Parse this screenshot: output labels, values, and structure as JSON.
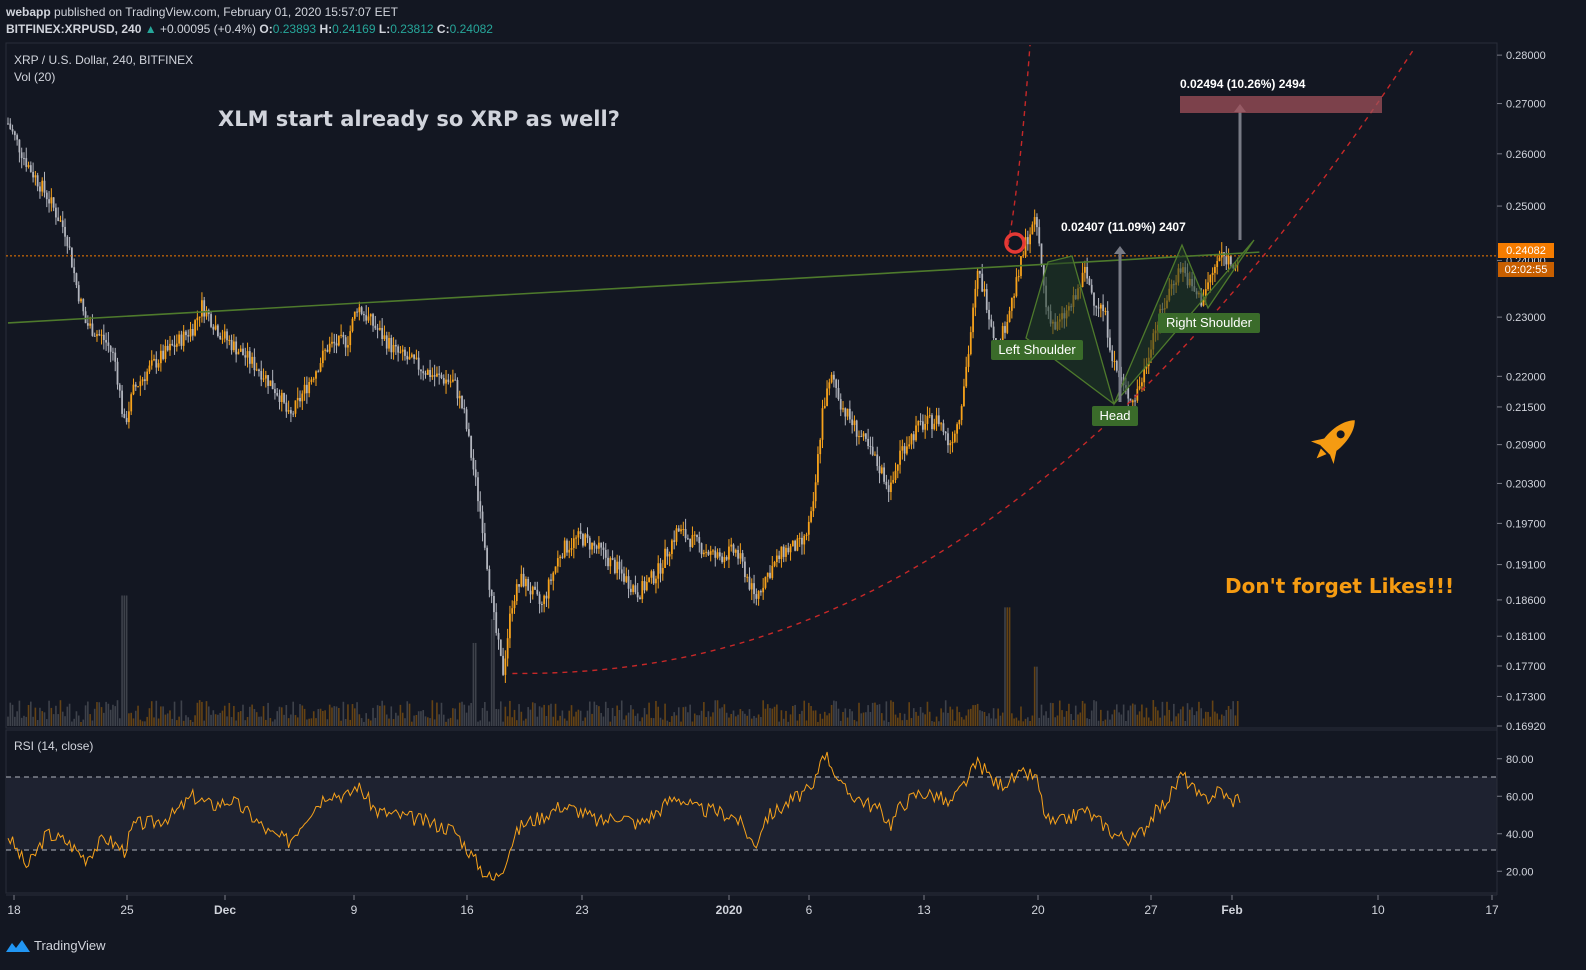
{
  "header": {
    "publisher": "webapp",
    "published_text": "published on TradingView.com, February 01, 2020 15:57:07 EET",
    "symbol": "BITFINEX:XRPUSD, 240",
    "change": "+0.00095 (+0.4%)",
    "o_label": "O:",
    "o": "0.23893",
    "h_label": "H:",
    "h": "0.24169",
    "l_label": "L:",
    "l": "0.23812",
    "c_label": "C:",
    "c": "0.24082"
  },
  "legend": {
    "title": "XRP / U.S. Dollar, 240, BITFINEX",
    "vol": "Vol (20)",
    "rsi": "RSI (14, close)"
  },
  "annotations": {
    "headline": "XLM start already so XRP as well?",
    "likes": "Don't forget Likes!!!",
    "left_shoulder": "Left Shoulder",
    "head": "Head",
    "right_shoulder": "Right Shoulder",
    "measure1": "0.02407 (11.09%) 2407",
    "measure2": "0.02494 (10.26%) 2494"
  },
  "price_tag": {
    "price": "0.24082",
    "countdown": "02:02:55"
  },
  "footer": {
    "brand": "TradingView"
  },
  "colors": {
    "background": "#131722",
    "candle_up": "#f7a21b",
    "candle_down": "#b2b5be",
    "trendline": "#4e7a2c",
    "curve": "#c62828",
    "rsi_line": "#f7a21b",
    "price_tag": "#f57c00",
    "label_green": "#3a6b2a",
    "target_box": "#a0505a"
  },
  "chart_data": {
    "type": "candlestick",
    "symbol": "XRP / U.S. Dollar",
    "timeframe": "240",
    "y_axis": {
      "scale": "log",
      "range": [
        0.1692,
        0.2815
      ],
      "tick_labels": [
        "0.28000",
        "0.27000",
        "0.26000",
        "0.25000",
        "0.24000",
        "0.23000",
        "0.22000",
        "0.21500",
        "0.20900",
        "0.20300",
        "0.19700",
        "0.19100",
        "0.18600",
        "0.18100",
        "0.17700",
        "0.17300",
        "0.16920"
      ],
      "ticks": [
        0.28,
        0.27,
        0.26,
        0.25,
        0.24,
        0.23,
        0.22,
        0.215,
        0.209,
        0.203,
        0.197,
        0.191,
        0.186,
        0.181,
        0.177,
        0.173,
        0.1692
      ]
    },
    "x_axis": {
      "tick_labels": [
        "18",
        "25",
        "Dec",
        "9",
        "16",
        "23",
        "2020",
        "6",
        "13",
        "20",
        "27",
        "Feb",
        "10",
        "17"
      ]
    },
    "price_path": [
      [
        0,
        0.266
      ],
      [
        2,
        0.258
      ],
      [
        4,
        0.252
      ],
      [
        6,
        0.245
      ],
      [
        7,
        0.236
      ],
      [
        8,
        0.229
      ],
      [
        10,
        0.226
      ],
      [
        11,
        0.223
      ],
      [
        12,
        0.212
      ],
      [
        13,
        0.218
      ],
      [
        15,
        0.222
      ],
      [
        17,
        0.225
      ],
      [
        19,
        0.228
      ],
      [
        20,
        0.232
      ],
      [
        22,
        0.227
      ],
      [
        24,
        0.224
      ],
      [
        26,
        0.221
      ],
      [
        28,
        0.217
      ],
      [
        29,
        0.213
      ],
      [
        31,
        0.219
      ],
      [
        33,
        0.225
      ],
      [
        35,
        0.226
      ],
      [
        36,
        0.232
      ],
      [
        38,
        0.228
      ],
      [
        40,
        0.224
      ],
      [
        42,
        0.222
      ],
      [
        44,
        0.22
      ],
      [
        46,
        0.219
      ],
      [
        47,
        0.214
      ],
      [
        48,
        0.205
      ],
      [
        49,
        0.196
      ],
      [
        50,
        0.184
      ],
      [
        51,
        0.176
      ],
      [
        52,
        0.186
      ],
      [
        53,
        0.189
      ],
      [
        55,
        0.185
      ],
      [
        57,
        0.193
      ],
      [
        59,
        0.195
      ],
      [
        61,
        0.193
      ],
      [
        63,
        0.19
      ],
      [
        65,
        0.187
      ],
      [
        67,
        0.19
      ],
      [
        68,
        0.193
      ],
      [
        69,
        0.196
      ],
      [
        71,
        0.194
      ],
      [
        73,
        0.192
      ],
      [
        75,
        0.193
      ],
      [
        76,
        0.19
      ],
      [
        77,
        0.186
      ],
      [
        78,
        0.189
      ],
      [
        80,
        0.193
      ],
      [
        82,
        0.194
      ],
      [
        83,
        0.199
      ],
      [
        84,
        0.215
      ],
      [
        85,
        0.22
      ],
      [
        86,
        0.215
      ],
      [
        88,
        0.21
      ],
      [
        90,
        0.205
      ],
      [
        91,
        0.202
      ],
      [
        92,
        0.208
      ],
      [
        94,
        0.212
      ],
      [
        96,
        0.213
      ],
      [
        97,
        0.209
      ],
      [
        98,
        0.213
      ],
      [
        99,
        0.224
      ],
      [
        100,
        0.238
      ],
      [
        101,
        0.232
      ],
      [
        102,
        0.224
      ],
      [
        103,
        0.23
      ],
      [
        104,
        0.236
      ],
      [
        105,
        0.244
      ],
      [
        106,
        0.247
      ],
      [
        107,
        0.232
      ],
      [
        108,
        0.228
      ],
      [
        110,
        0.233
      ],
      [
        111,
        0.238
      ],
      [
        112,
        0.233
      ],
      [
        113,
        0.231
      ],
      [
        114,
        0.222
      ],
      [
        115,
        0.218
      ],
      [
        116,
        0.216
      ],
      [
        117,
        0.22
      ],
      [
        118,
        0.227
      ],
      [
        119,
        0.231
      ],
      [
        120,
        0.236
      ],
      [
        121,
        0.239
      ],
      [
        122,
        0.235
      ],
      [
        123,
        0.233
      ],
      [
        124,
        0.237
      ],
      [
        125,
        0.241
      ],
      [
        126,
        0.24
      ],
      [
        127,
        0.24
      ]
    ],
    "volume": {
      "spikes": [
        [
          12,
          0.55
        ],
        [
          48,
          0.35
        ],
        [
          50,
          0.45
        ],
        [
          106,
          0.25
        ],
        [
          103,
          0.5
        ]
      ]
    },
    "trendline": {
      "from": [
        0,
        0.229
      ],
      "to": [
        129,
        0.2415
      ]
    },
    "neckline_level": 0.24082,
    "curve": {
      "from": [
        52,
        0.176
      ],
      "to": [
        145,
        0.2815
      ]
    },
    "rsi": {
      "range": [
        10,
        90
      ],
      "tick_labels": [
        "80.00",
        "60.00",
        "40.00",
        "20.00"
      ],
      "ticks": [
        80,
        60,
        40,
        20
      ],
      "upper_band": 70,
      "lower_band": 30,
      "path": [
        [
          0,
          39
        ],
        [
          2,
          22
        ],
        [
          4,
          40
        ],
        [
          6,
          36
        ],
        [
          8,
          27
        ],
        [
          10,
          38
        ],
        [
          12,
          31
        ],
        [
          13,
          45
        ],
        [
          15,
          46
        ],
        [
          17,
          50
        ],
        [
          19,
          60
        ],
        [
          21,
          55
        ],
        [
          23,
          58
        ],
        [
          25,
          50
        ],
        [
          27,
          40
        ],
        [
          29,
          36
        ],
        [
          31,
          51
        ],
        [
          33,
          62
        ],
        [
          35,
          60
        ],
        [
          36,
          66
        ],
        [
          38,
          52
        ],
        [
          40,
          50
        ],
        [
          42,
          48
        ],
        [
          44,
          45
        ],
        [
          46,
          42
        ],
        [
          48,
          27
        ],
        [
          49,
          20
        ],
        [
          50,
          15
        ],
        [
          51,
          22
        ],
        [
          52,
          36
        ],
        [
          53,
          45
        ],
        [
          55,
          49
        ],
        [
          57,
          55
        ],
        [
          59,
          52
        ],
        [
          61,
          46
        ],
        [
          63,
          50
        ],
        [
          65,
          45
        ],
        [
          67,
          52
        ],
        [
          68,
          57
        ],
        [
          69,
          60
        ],
        [
          71,
          53
        ],
        [
          73,
          52
        ],
        [
          75,
          49
        ],
        [
          76,
          42
        ],
        [
          77,
          33
        ],
        [
          78,
          48
        ],
        [
          80,
          55
        ],
        [
          82,
          62
        ],
        [
          83,
          63
        ],
        [
          84,
          85
        ],
        [
          85,
          76
        ],
        [
          86,
          64
        ],
        [
          88,
          58
        ],
        [
          90,
          52
        ],
        [
          91,
          45
        ],
        [
          92,
          55
        ],
        [
          94,
          62
        ],
        [
          96,
          60
        ],
        [
          97,
          55
        ],
        [
          98,
          62
        ],
        [
          99,
          70
        ],
        [
          100,
          78
        ],
        [
          101,
          72
        ],
        [
          102,
          66
        ],
        [
          103,
          68
        ],
        [
          104,
          70
        ],
        [
          105,
          72
        ],
        [
          106,
          70
        ],
        [
          107,
          48
        ],
        [
          108,
          45
        ],
        [
          110,
          50
        ],
        [
          111,
          53
        ],
        [
          112,
          48
        ],
        [
          113,
          45
        ],
        [
          114,
          40
        ],
        [
          115,
          38
        ],
        [
          116,
          37
        ],
        [
          117,
          42
        ],
        [
          118,
          50
        ],
        [
          119,
          55
        ],
        [
          120,
          62
        ],
        [
          121,
          72
        ],
        [
          122,
          65
        ],
        [
          123,
          58
        ],
        [
          124,
          60
        ],
        [
          125,
          64
        ],
        [
          126,
          57
        ],
        [
          127,
          60
        ]
      ]
    }
  }
}
